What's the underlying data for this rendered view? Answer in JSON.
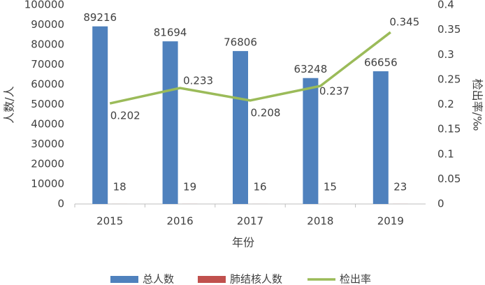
{
  "chart_data": {
    "type": "bar",
    "x_label": "年份",
    "y_label": "人数/人",
    "y2_label": "检出率/‰",
    "categories": [
      "2015",
      "2016",
      "2017",
      "2018",
      "2019"
    ],
    "series": [
      {
        "name": "总人数",
        "color": "#4f81bd",
        "values": [
          89216,
          81694,
          76806,
          63248,
          66656
        ]
      },
      {
        "name": "肺结核人数",
        "color": "#c0504d",
        "values": [
          18,
          19,
          16,
          15,
          23
        ]
      },
      {
        "name": "检出率",
        "color": "#9bbb59",
        "type": "line",
        "axis": "y2",
        "values": [
          0.202,
          0.233,
          0.208,
          0.237,
          0.345
        ]
      }
    ],
    "ylim": [
      0,
      100000
    ],
    "yticks": [
      0,
      10000,
      20000,
      30000,
      40000,
      50000,
      60000,
      70000,
      80000,
      90000,
      100000
    ],
    "y2lim": [
      0,
      0.4
    ],
    "y2ticks": [
      0,
      0.05,
      0.1,
      0.15,
      0.2,
      0.25,
      0.3,
      0.35,
      0.4
    ],
    "grid": false,
    "legend": "bottom"
  }
}
